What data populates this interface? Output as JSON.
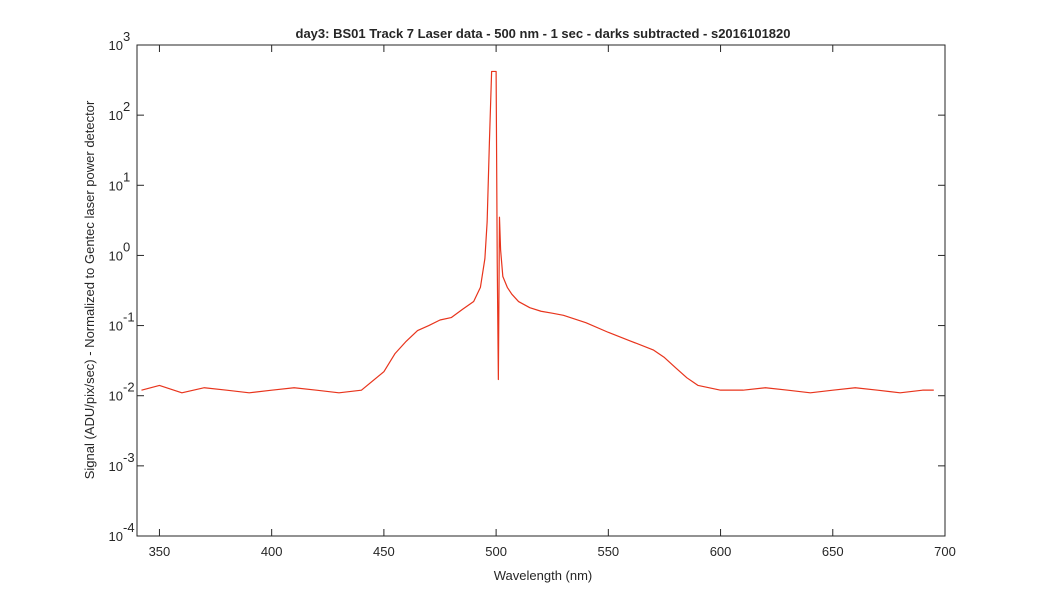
{
  "chart_data": {
    "type": "line",
    "title": "day3: BS01  Track 7 Laser data - 500 nm - 1 sec - darks subtracted - s2016101820",
    "xlabel": "Wavelength (nm)",
    "ylabel": "Signal (ADU/pix/sec) - Normalized to Gentec laser power detector",
    "xlim": [
      340,
      700
    ],
    "ylim": [
      0.0001,
      1000
    ],
    "yscale": "log",
    "grid": false,
    "x_ticks": [
      "350",
      "400",
      "450",
      "500",
      "550",
      "600",
      "650",
      "700"
    ],
    "x_tick_values": [
      350,
      400,
      450,
      500,
      550,
      600,
      650,
      700
    ],
    "y_ticks": [
      {
        "value": 0.0001,
        "base": "10",
        "exp": "-4"
      },
      {
        "value": 0.001,
        "base": "10",
        "exp": "-3"
      },
      {
        "value": 0.01,
        "base": "10",
        "exp": "-2"
      },
      {
        "value": 0.1,
        "base": "10",
        "exp": "-1"
      },
      {
        "value": 1,
        "base": "10",
        "exp": "0"
      },
      {
        "value": 10,
        "base": "10",
        "exp": "1"
      },
      {
        "value": 100,
        "base": "10",
        "exp": "2"
      },
      {
        "value": 1000,
        "base": "10",
        "exp": "3"
      }
    ],
    "series": [
      {
        "color": "#e8341c",
        "x": [
          342,
          350,
          360,
          370,
          380,
          390,
          400,
          410,
          420,
          430,
          440,
          450,
          455,
          460,
          465,
          470,
          475,
          480,
          485,
          490,
          493,
          495,
          496,
          497,
          498,
          499,
          500,
          500.5,
          501,
          501.5,
          502,
          503,
          505,
          507,
          510,
          515,
          520,
          525,
          530,
          540,
          550,
          560,
          570,
          575,
          580,
          585,
          590,
          600,
          610,
          620,
          630,
          640,
          650,
          660,
          670,
          680,
          690,
          695
        ],
        "y": [
          0.012,
          0.014,
          0.011,
          0.013,
          0.012,
          0.011,
          0.012,
          0.013,
          0.012,
          0.011,
          0.012,
          0.022,
          0.04,
          0.06,
          0.085,
          0.1,
          0.12,
          0.13,
          0.17,
          0.22,
          0.35,
          0.9,
          3,
          40,
          420,
          420,
          420,
          0.8,
          0.017,
          3.5,
          1.2,
          0.5,
          0.35,
          0.28,
          0.22,
          0.18,
          0.16,
          0.15,
          0.14,
          0.11,
          0.08,
          0.06,
          0.045,
          0.035,
          0.025,
          0.018,
          0.014,
          0.012,
          0.012,
          0.013,
          0.012,
          0.011,
          0.012,
          0.013,
          0.012,
          0.011,
          0.012,
          0.012
        ]
      }
    ]
  }
}
